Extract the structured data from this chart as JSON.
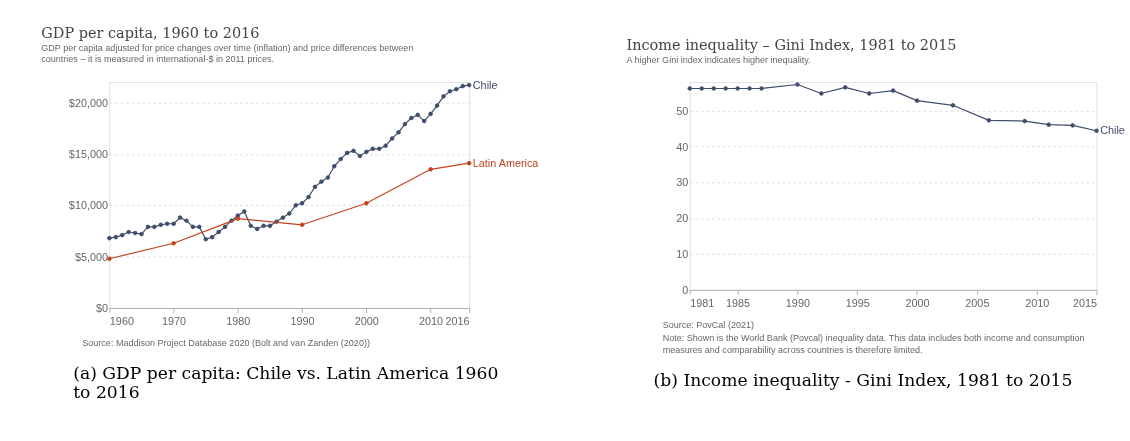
{
  "chart_data": [
    {
      "type": "line",
      "title": "GDP per capita, 1960 to 2016",
      "subtitle": "GDP per capita adjusted for price changes over time (inflation) and price differences between countries – it is measured in international-$ in 2011 prices.",
      "xlim": [
        1960,
        2016
      ],
      "xticks": [
        1960,
        1970,
        1980,
        1990,
        2000,
        2010,
        2016
      ],
      "ylim": [
        0,
        22000
      ],
      "yticks": [
        {
          "value": 0,
          "label": "$0"
        },
        {
          "value": 5000,
          "label": "$5,000"
        },
        {
          "value": 10000,
          "label": "$10,000"
        },
        {
          "value": 15000,
          "label": "$15,000"
        },
        {
          "value": 20000,
          "label": "$20,000"
        }
      ],
      "grid": "y",
      "legend": false,
      "marker": "circle",
      "line_style": "solid",
      "series": [
        {
          "name": "Chile",
          "color": "#3d4d6a",
          "x": [
            1960,
            1961,
            1962,
            1963,
            1964,
            1965,
            1966,
            1967,
            1968,
            1969,
            1970,
            1971,
            1972,
            1973,
            1974,
            1975,
            1976,
            1977,
            1978,
            1979,
            1980,
            1981,
            1982,
            1983,
            1984,
            1985,
            1986,
            1987,
            1988,
            1989,
            1990,
            1991,
            1992,
            1993,
            1994,
            1995,
            1996,
            1997,
            1998,
            1999,
            2000,
            2001,
            2002,
            2003,
            2004,
            2005,
            2006,
            2007,
            2008,
            2009,
            2010,
            2011,
            2012,
            2013,
            2014,
            2015,
            2016
          ],
          "values": [
            6800,
            6900,
            7100,
            7400,
            7300,
            7200,
            7900,
            7900,
            8100,
            8200,
            8200,
            8800,
            8500,
            7900,
            7900,
            6700,
            6900,
            7400,
            7900,
            8500,
            9000,
            9400,
            8000,
            7700,
            8000,
            8000,
            8400,
            8800,
            9200,
            10000,
            10200,
            10800,
            11800,
            12300,
            12700,
            13800,
            14500,
            15100,
            15300,
            14800,
            15200,
            15500,
            15500,
            15800,
            16500,
            17100,
            17900,
            18500,
            18800,
            18200,
            18900,
            19700,
            20600,
            21100,
            21300,
            21600,
            21700
          ]
        },
        {
          "name": "Latin America",
          "color": "#c1431c",
          "x": [
            1960,
            1970,
            1980,
            1990,
            2000,
            2010,
            2016
          ],
          "values": [
            4800,
            6300,
            8700,
            8100,
            10200,
            13500,
            14100
          ]
        }
      ],
      "annotations": [
        "Source: Maddison Project Database 2020 (Bolt and van Zanden (2020))",
        "(a) GDP per capita: Chile vs. Latin America 1960 to 2016"
      ]
    },
    {
      "type": "line",
      "title": "Income inequality – Gini Index, 1981 to 2015",
      "subtitle": "A higher Gini index indicates higher inequality.",
      "xlim": [
        1981,
        2015
      ],
      "xticks": [
        1981,
        1985,
        1990,
        1995,
        2000,
        2005,
        2010,
        2015
      ],
      "ylim": [
        0,
        58
      ],
      "yticks": [
        0,
        10,
        20,
        30,
        40,
        50
      ],
      "grid": "y",
      "legend": false,
      "marker": "circle",
      "line_style": "solid",
      "series": [
        {
          "name": "Chile",
          "color": "#3d4d6a",
          "x": [
            1981,
            1982,
            1983,
            1984,
            1985,
            1986,
            1987,
            1990,
            1992,
            1994,
            1996,
            1998,
            2000,
            2003,
            2006,
            2009,
            2011,
            2013,
            2015
          ],
          "values": [
            56.2,
            56.2,
            56.2,
            56.2,
            56.2,
            56.2,
            56.2,
            57.3,
            54.8,
            56.5,
            54.8,
            55.6,
            52.8,
            51.5,
            47.3,
            47.1,
            46.1,
            45.9,
            44.4
          ]
        }
      ],
      "annotations": [
        "Source: PovCal (2021)",
        "Note: Shown is the World Bank (Povcal) inequality data. This data includes both income and consumption measures and comparability across countries is therefore limited.",
        "(b) Income inequality - Gini Index, 1981 to 2015"
      ]
    }
  ]
}
